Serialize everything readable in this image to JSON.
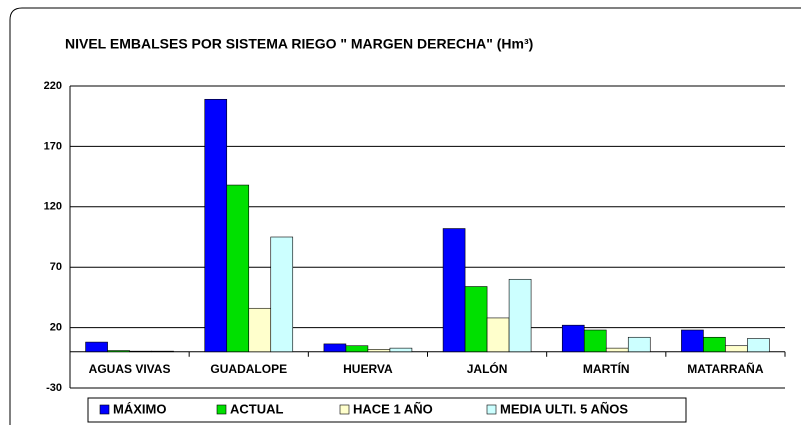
{
  "chart_data": {
    "type": "bar",
    "title": "NIVEL EMBALSES POR SISTEMA  RIEGO \" MARGEN DERECHA\" (Hm³)",
    "categories": [
      "AGUAS VIVAS",
      "GUADALOPE",
      "HUERVA",
      "JALÓN",
      "MARTÍN",
      "MATARRAÑA"
    ],
    "series": [
      {
        "name": "MÁXIMO",
        "color": "#0000ff",
        "values": [
          8,
          209,
          6.5,
          102,
          22,
          18
        ]
      },
      {
        "name": "ACTUAL",
        "color": "#00e000",
        "values": [
          1,
          138,
          5,
          54,
          18,
          12
        ]
      },
      {
        "name": "HACE 1 AÑO",
        "color": "#ffffcc",
        "values": [
          0.5,
          36,
          2,
          28,
          3,
          5
        ]
      },
      {
        "name": "MEDIA  ULTI. 5 AÑOS",
        "color": "#ccffff",
        "values": [
          0.5,
          95,
          3,
          60,
          12,
          11
        ]
      }
    ],
    "ylim": [
      -30,
      220
    ],
    "yticks": [
      -30,
      20,
      70,
      120,
      170,
      220
    ],
    "grid": true,
    "legend": "bottom"
  }
}
